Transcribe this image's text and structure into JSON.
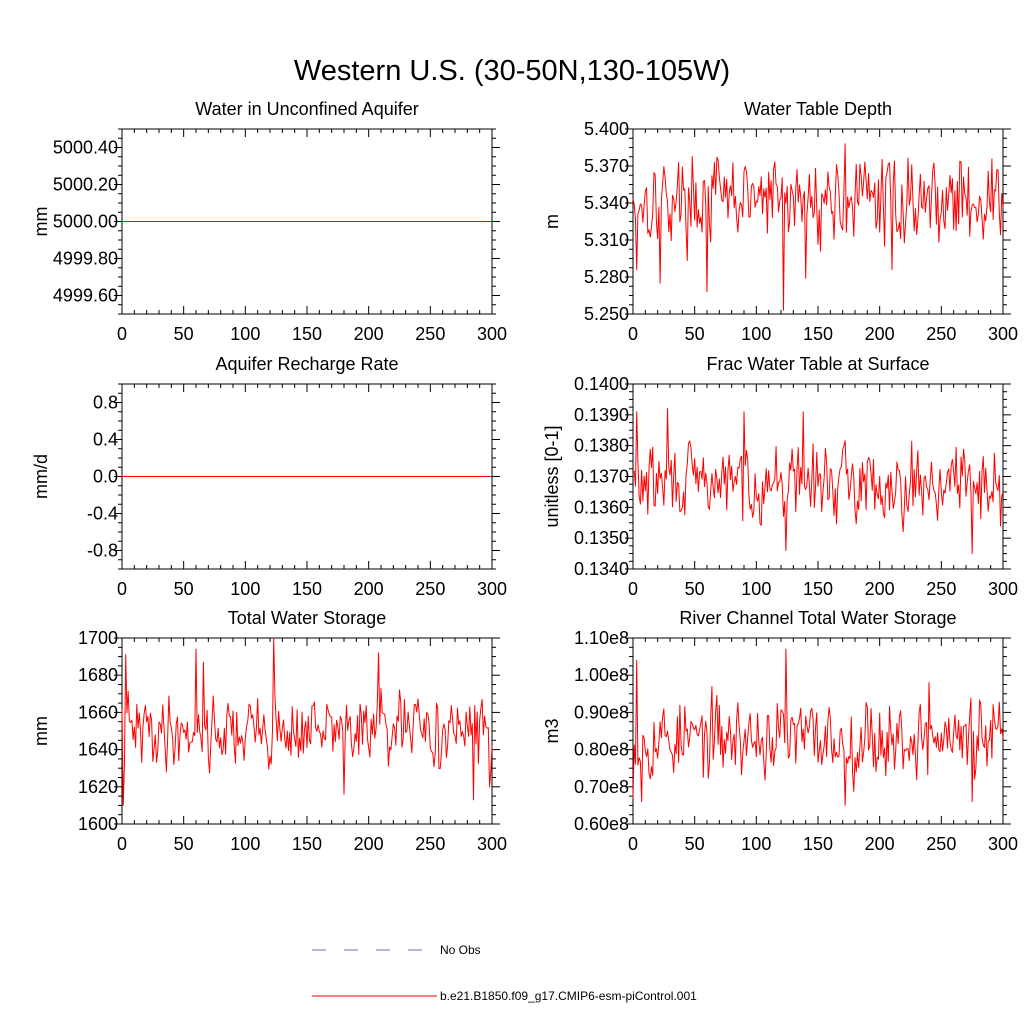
{
  "figure_title": "Western U.S. (30-50N,130-105W)",
  "colors": {
    "model": "#ff0000",
    "obs": "#6b6bcf",
    "axis": "#000000"
  },
  "legend": {
    "obs_label": "No Obs",
    "model_label": "b.e21.B1850.f09_g17.CMIP6-esm-piControl.001"
  },
  "chart_data": [
    {
      "type": "line",
      "title": "Water in Unconfined Aquifer",
      "ylabel": "mm",
      "xlim": [
        0,
        300
      ],
      "ylim": [
        4999.5,
        5000.5
      ],
      "xticks": [
        0,
        50,
        100,
        150,
        200,
        250,
        300
      ],
      "yticks": [
        4999.6,
        4999.8,
        5000.0,
        5000.2,
        5000.4
      ],
      "ytick_labels": [
        "4999.60",
        "4999.80",
        "5000.00",
        "5000.20",
        "5000.40"
      ],
      "series": [
        {
          "mode": "constant",
          "value": 5000.0
        }
      ]
    },
    {
      "type": "line",
      "title": "Water Table Depth",
      "ylabel": "m",
      "xlim": [
        0,
        300
      ],
      "ylim": [
        5.25,
        5.4
      ],
      "xticks": [
        0,
        50,
        100,
        150,
        200,
        250,
        300
      ],
      "yticks": [
        5.25,
        5.28,
        5.31,
        5.34,
        5.37,
        5.4
      ],
      "ytick_labels": [
        "5.250",
        "5.280",
        "5.310",
        "5.340",
        "5.370",
        "5.400"
      ],
      "series": [
        {
          "mode": "noise",
          "seed": 17,
          "mean": 5.343,
          "spread": 0.016,
          "spikes": [
            [
              3,
              5.286
            ],
            [
              22,
              5.275
            ],
            [
              60,
              5.268
            ],
            [
              122,
              5.253
            ],
            [
              140,
              5.279
            ],
            [
              172,
              5.388
            ],
            [
              210,
              5.286
            ]
          ]
        }
      ]
    },
    {
      "type": "line",
      "title": "Aquifer Recharge Rate",
      "ylabel": "mm/d",
      "xlim": [
        0,
        300
      ],
      "ylim": [
        -1.0,
        1.0
      ],
      "xticks": [
        0,
        50,
        100,
        150,
        200,
        250,
        300
      ],
      "yticks": [
        -0.8,
        -0.4,
        0.0,
        0.4,
        0.8
      ],
      "ytick_labels": [
        "-0.8",
        "-0.4",
        "0.0",
        "0.4",
        "0.8"
      ],
      "series": [
        {
          "mode": "constant",
          "value": 0.0
        }
      ]
    },
    {
      "type": "line",
      "title": "Frac Water Table at Surface",
      "ylabel": "unitless [0-1]",
      "xlim": [
        0,
        300
      ],
      "ylim": [
        0.134,
        0.14
      ],
      "xticks": [
        0,
        50,
        100,
        150,
        200,
        250,
        300
      ],
      "yticks": [
        0.134,
        0.135,
        0.136,
        0.137,
        0.138,
        0.139,
        0.14
      ],
      "ytick_labels": [
        "0.1340",
        "0.1350",
        "0.1360",
        "0.1370",
        "0.1380",
        "0.1390",
        "0.1400"
      ],
      "series": [
        {
          "mode": "noise",
          "seed": 29,
          "mean": 0.1368,
          "spread": 0.00055,
          "spikes": [
            [
              3,
              0.1391
            ],
            [
              28,
              0.1392
            ],
            [
              90,
              0.1391
            ],
            [
              124,
              0.1346
            ],
            [
              138,
              0.1391
            ],
            [
              275,
              0.1345
            ],
            [
              298,
              0.1354
            ]
          ]
        }
      ]
    },
    {
      "type": "line",
      "title": "Total Water Storage",
      "ylabel": "mm",
      "xlim": [
        0,
        300
      ],
      "ylim": [
        1600,
        1700
      ],
      "xticks": [
        0,
        50,
        100,
        150,
        200,
        250,
        300
      ],
      "yticks": [
        1600,
        1620,
        1640,
        1660,
        1680,
        1700
      ],
      "ytick_labels": [
        "1600",
        "1620",
        "1640",
        "1660",
        "1680",
        "1700"
      ],
      "series": [
        {
          "mode": "noise",
          "seed": 41,
          "mean": 1650,
          "spread": 9,
          "spikes": [
            [
              1,
              1610
            ],
            [
              3,
              1691
            ],
            [
              60,
              1694
            ],
            [
              66,
              1687
            ],
            [
              123,
              1700
            ],
            [
              180,
              1616
            ],
            [
              208,
              1692
            ],
            [
              285,
              1613
            ],
            [
              298,
              1620
            ]
          ]
        }
      ]
    },
    {
      "type": "line",
      "title": "River Channel Total Water Storage",
      "ylabel": "m3",
      "xlim": [
        0,
        300
      ],
      "ylim": [
        60000000.0,
        110000000.0
      ],
      "xticks": [
        0,
        50,
        100,
        150,
        200,
        250,
        300
      ],
      "yticks": [
        60000000.0,
        70000000.0,
        80000000.0,
        90000000.0,
        100000000.0,
        110000000.0
      ],
      "ytick_labels": [
        "0.60e8",
        "0.70e8",
        "0.80e8",
        "0.90e8",
        "1.00e8",
        "1.10e8"
      ],
      "series": [
        {
          "mode": "noise",
          "seed": 53,
          "mean": 83000000.0,
          "spread": 5000000.0,
          "spikes": [
            [
              0,
              67000000.0
            ],
            [
              3,
              104000000.0
            ],
            [
              7,
              66000000.0
            ],
            [
              124,
              107000000.0
            ],
            [
              172,
              65000000.0
            ],
            [
              240,
              98000000.0
            ],
            [
              275,
              66000000.0
            ]
          ]
        }
      ]
    }
  ]
}
